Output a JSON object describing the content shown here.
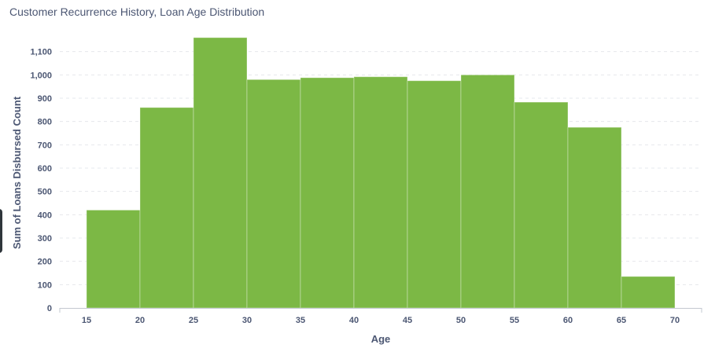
{
  "header": {
    "title": "Customer Recurrence History, Loan Age Distribution"
  },
  "colors": {
    "bar": "#7cb845",
    "grid": "#e6e8ec",
    "text": "#4c5773",
    "axis": "#c3c8d0"
  },
  "chart_data": {
    "type": "bar",
    "title": "Customer Recurrence History, Loan Age Distribution",
    "xlabel": "Age",
    "ylabel": "Sum of Loans Disbursed Count",
    "bins": [
      {
        "start": 15,
        "end": 20,
        "value": 420
      },
      {
        "start": 20,
        "end": 25,
        "value": 860
      },
      {
        "start": 25,
        "end": 30,
        "value": 1160
      },
      {
        "start": 30,
        "end": 35,
        "value": 980
      },
      {
        "start": 35,
        "end": 40,
        "value": 988
      },
      {
        "start": 40,
        "end": 45,
        "value": 992
      },
      {
        "start": 45,
        "end": 50,
        "value": 975
      },
      {
        "start": 50,
        "end": 55,
        "value": 1000
      },
      {
        "start": 55,
        "end": 60,
        "value": 883
      },
      {
        "start": 60,
        "end": 65,
        "value": 775
      },
      {
        "start": 65,
        "end": 70,
        "value": 135
      }
    ],
    "xticks": [
      "15",
      "20",
      "25",
      "30",
      "35",
      "40",
      "45",
      "50",
      "55",
      "60",
      "65",
      "70"
    ],
    "yticks": [
      "0",
      "100",
      "200",
      "300",
      "400",
      "500",
      "600",
      "700",
      "800",
      "900",
      "1,000",
      "1,100"
    ],
    "xlim": [
      12.5,
      72.5
    ],
    "ylim": [
      0,
      1200
    ],
    "grid": true
  }
}
